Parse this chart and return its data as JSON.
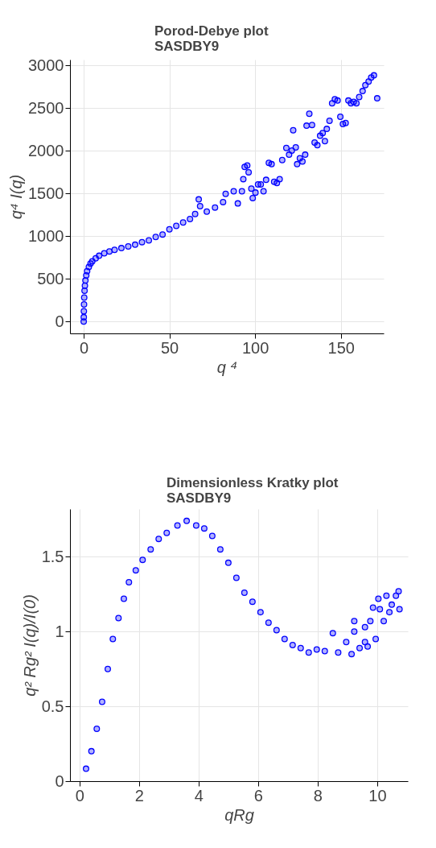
{
  "chart_data": [
    {
      "type": "scatter",
      "title": "Porod-Debye plot",
      "subtitle": "SASDBY9",
      "xlabel": "q ⁴",
      "ylabel": "q⁴ I(q)",
      "xlim": [
        -8,
        175
      ],
      "ylim": [
        -140,
        3070
      ],
      "xticks": [
        0,
        50,
        100,
        150
      ],
      "yticks": [
        0,
        500,
        1000,
        1500,
        2000,
        2500,
        3000
      ],
      "grid": true,
      "marker": "circle",
      "series": [
        {
          "color": "#0000ff",
          "x": [
            0,
            0.05,
            0.1,
            0.2,
            0.3,
            0.5,
            0.7,
            1,
            1.5,
            2,
            3,
            4,
            5,
            7,
            9,
            12,
            15,
            18,
            22,
            26,
            30,
            34,
            38,
            42,
            46,
            50,
            54,
            58,
            62,
            65,
            67.1,
            67.9,
            71.8,
            76.6,
            81.3,
            82.8,
            87.5,
            89.9,
            92.3,
            93.1,
            93.9,
            95.4,
            96.2,
            97.8,
            98.6,
            100.2,
            101.7,
            103.3,
            104.9,
            106.4,
            108,
            109.6,
            111.1,
            112.7,
            114.3,
            115.8,
            118.2,
            119.8,
            121.4,
            122.2,
            123.7,
            124.5,
            126.1,
            127.6,
            129.2,
            130,
            131.6,
            133.2,
            134.7,
            136.3,
            137.9,
            139.4,
            140.7,
            141.8,
            143.4,
            144.9,
            146.5,
            148.1,
            149.7,
            151.2,
            152.8,
            154.4,
            155.9,
            157.5,
            159.1,
            160.7,
            162.7,
            164.3,
            166.2,
            167.7,
            169.3,
            171.2
          ],
          "values": [
            0,
            50,
            120,
            200,
            280,
            360,
            420,
            480,
            540,
            590,
            640,
            680,
            705,
            740,
            770,
            800,
            820,
            840,
            860,
            880,
            900,
            930,
            950,
            990,
            1020,
            1080,
            1120,
            1160,
            1200,
            1260,
            1431,
            1352,
            1288,
            1336,
            1400,
            1495,
            1527,
            1384,
            1527,
            1669,
            1812,
            1828,
            1749,
            1558,
            1447,
            1511,
            1606,
            1606,
            1527,
            1660,
            1860,
            1844,
            1638,
            1622,
            1669,
            1892,
            2034,
            1955,
            2003,
            2241,
            2041,
            1844,
            1914,
            1876,
            1955,
            2295,
            2435,
            2304,
            2098,
            2066,
            2177,
            2209,
            2114,
            2257,
            2352,
            2558,
            2606,
            2590,
            2400,
            2314,
            2327,
            2590,
            2558,
            2574,
            2558,
            2631,
            2701,
            2771,
            2812,
            2860,
            2885,
            2616
          ]
        }
      ]
    },
    {
      "type": "scatter",
      "title": "Dimensionless Kratky plot",
      "subtitle": "SASDBY9",
      "xlabel": "qRg",
      "ylabel": "q² Rg² I(q)/I(0)",
      "xlim": [
        -0.32,
        11.03
      ],
      "ylim": [
        0,
        1.82
      ],
      "xticks": [
        0,
        2,
        4,
        6,
        8,
        10
      ],
      "yticks": [
        0,
        0.5,
        1,
        1.5
      ],
      "grid": true,
      "marker": "circle",
      "series": [
        {
          "color": "#0000ff",
          "x": [
            0.22,
            0.4,
            0.58,
            0.76,
            0.95,
            1.12,
            1.31,
            1.49,
            1.66,
            1.89,
            2.12,
            2.39,
            2.66,
            2.93,
            3.29,
            3.6,
            3.92,
            4.19,
            4.46,
            4.73,
            5.0,
            5.27,
            5.54,
            5.81,
            6.08,
            6.35,
            6.62,
            6.89,
            7.16,
            7.43,
            7.7,
            7.97,
            8.24,
            8.51,
            8.69,
            8.96,
            9.14,
            9.23,
            9.23,
            9.41,
            9.59,
            9.68,
            9.59,
            9.77,
            9.86,
            9.95,
            10.04,
            10.09,
            10.22,
            10.31,
            10.41,
            10.49,
            10.63,
            10.72,
            10.75
          ],
          "values": [
            0.083,
            0.2,
            0.35,
            0.53,
            0.75,
            0.95,
            1.09,
            1.22,
            1.33,
            1.41,
            1.48,
            1.55,
            1.62,
            1.66,
            1.71,
            1.74,
            1.71,
            1.69,
            1.64,
            1.55,
            1.46,
            1.36,
            1.26,
            1.2,
            1.13,
            1.06,
            1.01,
            0.95,
            0.91,
            0.89,
            0.86,
            0.88,
            0.87,
            0.99,
            0.86,
            0.93,
            0.85,
            1.07,
            1.0,
            0.89,
            0.93,
            0.9,
            1.03,
            1.07,
            1.16,
            0.95,
            1.22,
            1.15,
            1.07,
            1.24,
            1.13,
            1.18,
            1.24,
            1.27,
            1.15
          ]
        }
      ]
    }
  ]
}
